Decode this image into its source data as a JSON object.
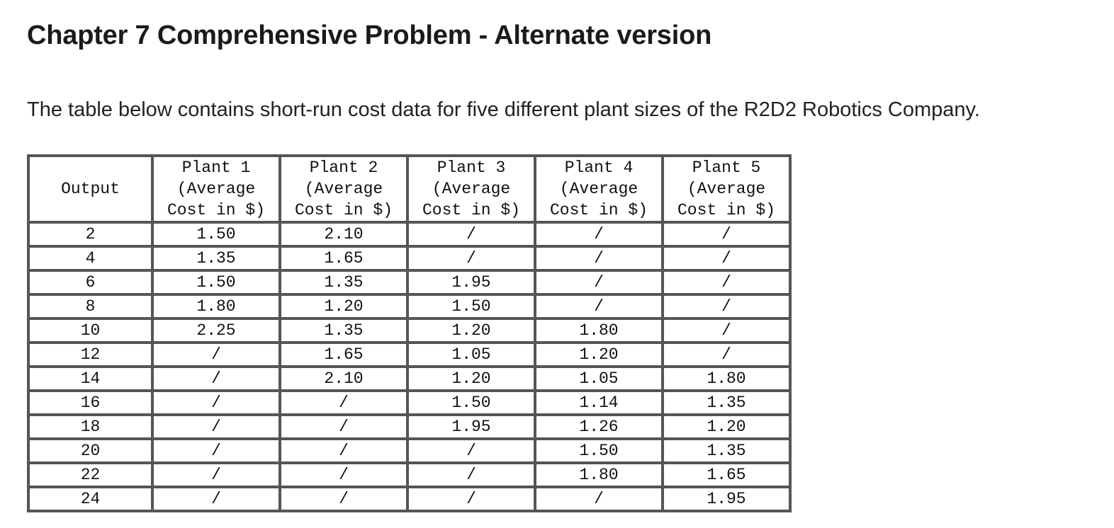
{
  "title": "Chapter 7 Comprehensive Problem - Alternate version",
  "intro": "The table below contains short-run cost data for five different plant sizes of the R2D2 Robotics Company.",
  "table": {
    "output_header": "Output",
    "plant_headers": [
      [
        "Plant 1",
        "(Average",
        "Cost in $)"
      ],
      [
        "Plant 2",
        "(Average",
        "Cost in $)"
      ],
      [
        "Plant 3",
        "(Average",
        "Cost in $)"
      ],
      [
        "Plant 4",
        "(Average",
        "Cost in $)"
      ],
      [
        "Plant 5",
        "(Average",
        "Cost in $)"
      ]
    ],
    "rows": [
      [
        "2",
        "1.50",
        "2.10",
        "/",
        "/",
        "/"
      ],
      [
        "4",
        "1.35",
        "1.65",
        "/",
        "/",
        "/"
      ],
      [
        "6",
        "1.50",
        "1.35",
        "1.95",
        "/",
        "/"
      ],
      [
        "8",
        "1.80",
        "1.20",
        "1.50",
        "/",
        "/"
      ],
      [
        "10",
        "2.25",
        "1.35",
        "1.20",
        "1.80",
        "/"
      ],
      [
        "12",
        "/",
        "1.65",
        "1.05",
        "1.20",
        "/"
      ],
      [
        "14",
        "/",
        "2.10",
        "1.20",
        "1.05",
        "1.80"
      ],
      [
        "16",
        "/",
        "/",
        "1.50",
        "1.14",
        "1.35"
      ],
      [
        "18",
        "/",
        "/",
        "1.95",
        "1.26",
        "1.20"
      ],
      [
        "20",
        "/",
        "/",
        "/",
        "1.50",
        "1.35"
      ],
      [
        "22",
        "/",
        "/",
        "/",
        "1.80",
        "1.65"
      ],
      [
        "24",
        "/",
        "/",
        "/",
        "/",
        "1.95"
      ]
    ]
  }
}
